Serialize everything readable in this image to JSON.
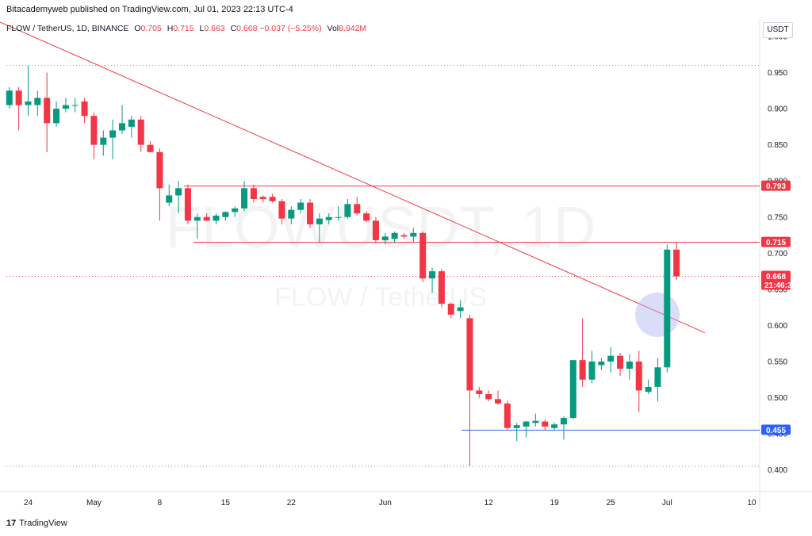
{
  "header": {
    "published": "Bitacademyweb published on TradingView.com, Jul 01, 2023 22:13 UTC-4"
  },
  "legend": {
    "symbol": "FLOW / TetherUS, 1D, BINANCE",
    "open_label": "O",
    "open": "0.705",
    "high_label": "H",
    "high": "0.715",
    "low_label": "L",
    "low": "0.663",
    "close_label": "C",
    "close": "0.668",
    "change": "−0.037 (−5.25%)",
    "vol_label": "Vol",
    "vol": "8.942M"
  },
  "currency": "USDT",
  "watermark": {
    "symbol": "FLOWUSDT, 1D",
    "name": "FLOW / TetherUS"
  },
  "footer": {
    "brand": "TradingView"
  },
  "colors": {
    "up": "#089981",
    "down": "#f23645",
    "resistance": "#f23645",
    "support": "#2962ff",
    "trendline": "#f23645",
    "circle": "#aab4ef"
  },
  "chart_data": {
    "type": "candlestick",
    "ylim": [
      0.37,
      1.0
    ],
    "y_ticks": [
      "1.000",
      "0.950",
      "0.900",
      "0.850",
      "0.800",
      "0.750",
      "0.700",
      "0.650",
      "0.600",
      "0.550",
      "0.500",
      "0.450",
      "0.400"
    ],
    "x_ticks": [
      {
        "label": "24",
        "day": 0
      },
      {
        "label": "May",
        "day": 7
      },
      {
        "label": "8",
        "day": 14
      },
      {
        "label": "15",
        "day": 21
      },
      {
        "label": "22",
        "day": 28
      },
      {
        "label": "Jun",
        "day": 38
      },
      {
        "label": "12",
        "day": 49
      },
      {
        "label": "19",
        "day": 56
      },
      {
        "label": "25",
        "day": 62
      },
      {
        "label": "Jul",
        "day": 68
      },
      {
        "label": "10",
        "day": 77
      }
    ],
    "candles": [
      {
        "day": -2,
        "o": 0.905,
        "h": 0.93,
        "l": 0.9,
        "c": 0.925
      },
      {
        "day": -1,
        "o": 0.925,
        "h": 0.93,
        "l": 0.87,
        "c": 0.905
      },
      {
        "day": 0,
        "o": 0.905,
        "h": 0.96,
        "l": 0.89,
        "c": 0.91
      },
      {
        "day": 1,
        "o": 0.905,
        "h": 0.925,
        "l": 0.89,
        "c": 0.915
      },
      {
        "day": 2,
        "o": 0.915,
        "h": 0.95,
        "l": 0.84,
        "c": 0.88
      },
      {
        "day": 3,
        "o": 0.88,
        "h": 0.91,
        "l": 0.875,
        "c": 0.9
      },
      {
        "day": 4,
        "o": 0.9,
        "h": 0.915,
        "l": 0.895,
        "c": 0.905
      },
      {
        "day": 5,
        "o": 0.905,
        "h": 0.915,
        "l": 0.895,
        "c": 0.905
      },
      {
        "day": 6,
        "o": 0.91,
        "h": 0.915,
        "l": 0.88,
        "c": 0.89
      },
      {
        "day": 7,
        "o": 0.89,
        "h": 0.895,
        "l": 0.83,
        "c": 0.85
      },
      {
        "day": 8,
        "o": 0.85,
        "h": 0.87,
        "l": 0.835,
        "c": 0.86
      },
      {
        "day": 9,
        "o": 0.86,
        "h": 0.885,
        "l": 0.83,
        "c": 0.87
      },
      {
        "day": 10,
        "o": 0.87,
        "h": 0.905,
        "l": 0.865,
        "c": 0.88
      },
      {
        "day": 11,
        "o": 0.875,
        "h": 0.89,
        "l": 0.86,
        "c": 0.885
      },
      {
        "day": 12,
        "o": 0.885,
        "h": 0.89,
        "l": 0.84,
        "c": 0.85
      },
      {
        "day": 13,
        "o": 0.85,
        "h": 0.855,
        "l": 0.84,
        "c": 0.84
      },
      {
        "day": 14,
        "o": 0.84,
        "h": 0.845,
        "l": 0.745,
        "c": 0.79
      },
      {
        "day": 15,
        "o": 0.77,
        "h": 0.795,
        "l": 0.765,
        "c": 0.78
      },
      {
        "day": 16,
        "o": 0.78,
        "h": 0.8,
        "l": 0.755,
        "c": 0.79
      },
      {
        "day": 17,
        "o": 0.79,
        "h": 0.795,
        "l": 0.74,
        "c": 0.745
      },
      {
        "day": 18,
        "o": 0.745,
        "h": 0.755,
        "l": 0.72,
        "c": 0.75
      },
      {
        "day": 19,
        "o": 0.75,
        "h": 0.755,
        "l": 0.745,
        "c": 0.745
      },
      {
        "day": 20,
        "o": 0.745,
        "h": 0.755,
        "l": 0.74,
        "c": 0.752
      },
      {
        "day": 21,
        "o": 0.75,
        "h": 0.758,
        "l": 0.745,
        "c": 0.757
      },
      {
        "day": 22,
        "o": 0.757,
        "h": 0.765,
        "l": 0.75,
        "c": 0.762
      },
      {
        "day": 23,
        "o": 0.762,
        "h": 0.8,
        "l": 0.758,
        "c": 0.79
      },
      {
        "day": 24,
        "o": 0.79,
        "h": 0.795,
        "l": 0.77,
        "c": 0.775
      },
      {
        "day": 25,
        "o": 0.778,
        "h": 0.78,
        "l": 0.77,
        "c": 0.775
      },
      {
        "day": 26,
        "o": 0.778,
        "h": 0.782,
        "l": 0.77,
        "c": 0.772
      },
      {
        "day": 27,
        "o": 0.772,
        "h": 0.775,
        "l": 0.74,
        "c": 0.748
      },
      {
        "day": 28,
        "o": 0.748,
        "h": 0.765,
        "l": 0.74,
        "c": 0.76
      },
      {
        "day": 29,
        "o": 0.76,
        "h": 0.775,
        "l": 0.755,
        "c": 0.77
      },
      {
        "day": 30,
        "o": 0.77,
        "h": 0.775,
        "l": 0.735,
        "c": 0.74
      },
      {
        "day": 31,
        "o": 0.74,
        "h": 0.755,
        "l": 0.715,
        "c": 0.748
      },
      {
        "day": 32,
        "o": 0.746,
        "h": 0.755,
        "l": 0.74,
        "c": 0.75
      },
      {
        "day": 33,
        "o": 0.75,
        "h": 0.765,
        "l": 0.745,
        "c": 0.75
      },
      {
        "day": 34,
        "o": 0.75,
        "h": 0.775,
        "l": 0.748,
        "c": 0.768
      },
      {
        "day": 35,
        "o": 0.768,
        "h": 0.778,
        "l": 0.752,
        "c": 0.755
      },
      {
        "day": 36,
        "o": 0.755,
        "h": 0.758,
        "l": 0.743,
        "c": 0.745
      },
      {
        "day": 37,
        "o": 0.745,
        "h": 0.75,
        "l": 0.714,
        "c": 0.718
      },
      {
        "day": 38,
        "o": 0.718,
        "h": 0.728,
        "l": 0.712,
        "c": 0.723
      },
      {
        "day": 39,
        "o": 0.72,
        "h": 0.73,
        "l": 0.714,
        "c": 0.728
      },
      {
        "day": 40,
        "o": 0.725,
        "h": 0.728,
        "l": 0.72,
        "c": 0.723
      },
      {
        "day": 41,
        "o": 0.723,
        "h": 0.735,
        "l": 0.715,
        "c": 0.728
      },
      {
        "day": 42,
        "o": 0.728,
        "h": 0.73,
        "l": 0.66,
        "c": 0.665
      },
      {
        "day": 43,
        "o": 0.665,
        "h": 0.68,
        "l": 0.645,
        "c": 0.675
      },
      {
        "day": 44,
        "o": 0.675,
        "h": 0.678,
        "l": 0.625,
        "c": 0.63
      },
      {
        "day": 45,
        "o": 0.63,
        "h": 0.632,
        "l": 0.61,
        "c": 0.615
      },
      {
        "day": 46,
        "o": 0.62,
        "h": 0.635,
        "l": 0.61,
        "c": 0.625
      },
      {
        "day": 47,
        "o": 0.61,
        "h": 0.615,
        "l": 0.405,
        "c": 0.51
      },
      {
        "day": 48,
        "o": 0.51,
        "h": 0.515,
        "l": 0.5,
        "c": 0.505
      },
      {
        "day": 49,
        "o": 0.505,
        "h": 0.51,
        "l": 0.495,
        "c": 0.498
      },
      {
        "day": 50,
        "o": 0.498,
        "h": 0.51,
        "l": 0.49,
        "c": 0.492
      },
      {
        "day": 51,
        "o": 0.492,
        "h": 0.496,
        "l": 0.455,
        "c": 0.458
      },
      {
        "day": 52,
        "o": 0.458,
        "h": 0.465,
        "l": 0.44,
        "c": 0.462
      },
      {
        "day": 53,
        "o": 0.46,
        "h": 0.468,
        "l": 0.445,
        "c": 0.467
      },
      {
        "day": 54,
        "o": 0.465,
        "h": 0.478,
        "l": 0.46,
        "c": 0.468
      },
      {
        "day": 55,
        "o": 0.467,
        "h": 0.47,
        "l": 0.455,
        "c": 0.46
      },
      {
        "day": 56,
        "o": 0.458,
        "h": 0.466,
        "l": 0.455,
        "c": 0.463
      },
      {
        "day": 57,
        "o": 0.463,
        "h": 0.474,
        "l": 0.442,
        "c": 0.472
      },
      {
        "day": 58,
        "o": 0.472,
        "h": 0.552,
        "l": 0.47,
        "c": 0.552
      },
      {
        "day": 59,
        "o": 0.552,
        "h": 0.61,
        "l": 0.515,
        "c": 0.525
      },
      {
        "day": 60,
        "o": 0.525,
        "h": 0.565,
        "l": 0.52,
        "c": 0.55
      },
      {
        "day": 61,
        "o": 0.545,
        "h": 0.555,
        "l": 0.538,
        "c": 0.55
      },
      {
        "day": 62,
        "o": 0.55,
        "h": 0.57,
        "l": 0.535,
        "c": 0.558
      },
      {
        "day": 63,
        "o": 0.558,
        "h": 0.562,
        "l": 0.53,
        "c": 0.54
      },
      {
        "day": 64,
        "o": 0.54,
        "h": 0.56,
        "l": 0.525,
        "c": 0.55
      },
      {
        "day": 65,
        "o": 0.55,
        "h": 0.565,
        "l": 0.48,
        "c": 0.51
      },
      {
        "day": 66,
        "o": 0.508,
        "h": 0.525,
        "l": 0.505,
        "c": 0.515
      },
      {
        "day": 67,
        "o": 0.515,
        "h": 0.555,
        "l": 0.495,
        "c": 0.542
      },
      {
        "day": 68,
        "o": 0.542,
        "h": 0.712,
        "l": 0.535,
        "c": 0.705
      },
      {
        "day": 69,
        "o": 0.705,
        "h": 0.715,
        "l": 0.663,
        "c": 0.668
      }
    ],
    "horizontal_lines": [
      {
        "price": 0.793,
        "label": "0.793",
        "kind": "resistance"
      },
      {
        "price": 0.715,
        "label": "0.715",
        "kind": "resistance"
      },
      {
        "price": 0.455,
        "label": "0.455",
        "kind": "support"
      }
    ],
    "dotted_levels": [
      0.96,
      0.405
    ],
    "last_price": {
      "price": 0.668,
      "label": "0.668",
      "countdown": "21:46:34"
    },
    "trendline": {
      "start": {
        "day": -3,
        "price": 1.02
      },
      "end": {
        "day": 71,
        "price": 0.59
      }
    }
  }
}
